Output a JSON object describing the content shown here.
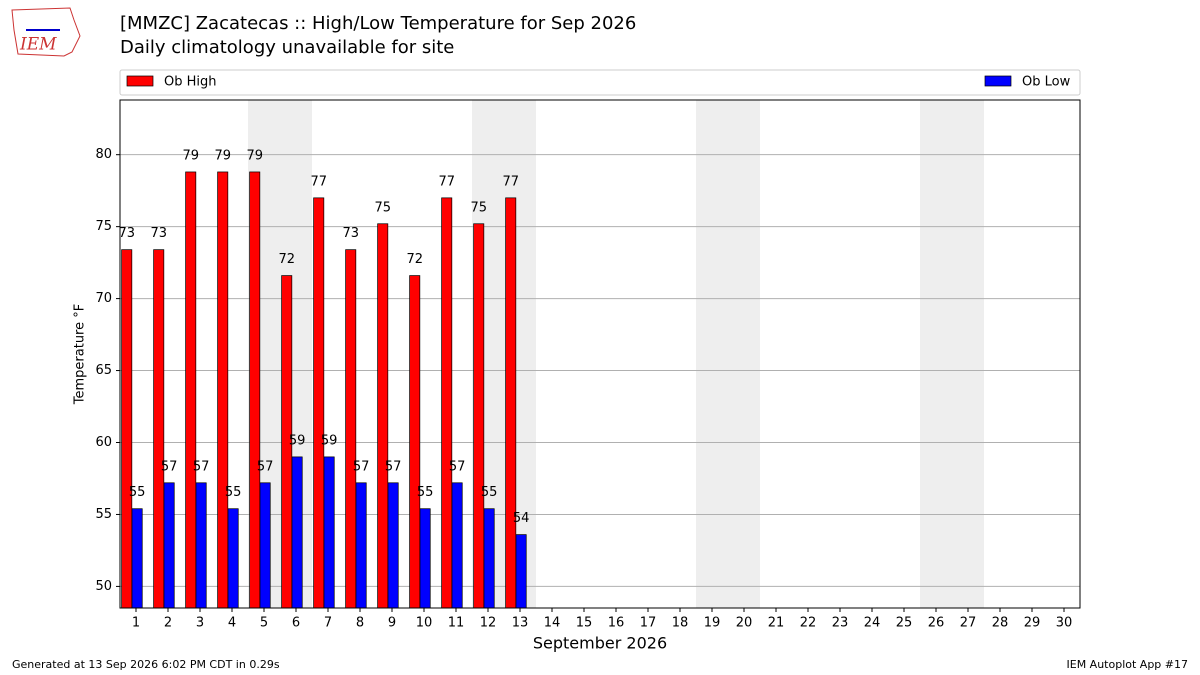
{
  "logo_text": "IEM",
  "footer_left": "Generated at 13 Sep 2026 6:02 PM CDT in 0.29s",
  "footer_right": "IEM Autoplot App #17",
  "chart_data": {
    "type": "bar",
    "title": "[MMZC] Zacatecas :: High/Low Temperature for Sep 2026",
    "subtitle": "Daily climatology unavailable for site",
    "x_label": "September 2026",
    "y_label": "Temperature °F",
    "x": [
      1,
      2,
      3,
      4,
      5,
      6,
      7,
      8,
      9,
      10,
      11,
      12,
      13,
      14,
      15,
      16,
      17,
      18,
      19,
      20,
      21,
      22,
      23,
      24,
      25,
      26,
      27,
      28,
      29,
      30
    ],
    "xlim": [
      0.5,
      30.5
    ],
    "xticks": [
      1,
      2,
      3,
      4,
      5,
      6,
      7,
      8,
      9,
      10,
      11,
      12,
      13,
      14,
      15,
      16,
      17,
      18,
      19,
      20,
      21,
      22,
      23,
      24,
      25,
      26,
      27,
      28,
      29,
      30
    ],
    "ylim": [
      48.5,
      83.8
    ],
    "yticks": [
      50,
      55,
      60,
      65,
      70,
      75,
      80
    ],
    "grid": true,
    "weekend_days": [
      5,
      6,
      12,
      13,
      19,
      20,
      26,
      27
    ],
    "weekend_color": "#eeeeee",
    "legend_position": "top",
    "series": [
      {
        "name": "Ob High",
        "color": "#ff0000",
        "values": [
          73.4,
          73.4,
          78.8,
          78.8,
          78.8,
          71.6,
          77.0,
          73.4,
          75.2,
          71.6,
          77.0,
          75.2,
          77.0,
          null,
          null,
          null,
          null,
          null,
          null,
          null,
          null,
          null,
          null,
          null,
          null,
          null,
          null,
          null,
          null,
          null
        ],
        "value_labels": [
          "73",
          "73",
          "79",
          "79",
          "79",
          "72",
          "77",
          "73",
          "75",
          "72",
          "77",
          "75",
          "77",
          null,
          null,
          null,
          null,
          null,
          null,
          null,
          null,
          null,
          null,
          null,
          null,
          null,
          null,
          null,
          null,
          null
        ]
      },
      {
        "name": "Ob Low",
        "color": "#0000ff",
        "values": [
          55.4,
          57.2,
          57.2,
          55.4,
          57.2,
          59.0,
          59.0,
          57.2,
          57.2,
          55.4,
          57.2,
          55.4,
          53.6,
          null,
          null,
          null,
          null,
          null,
          null,
          null,
          null,
          null,
          null,
          null,
          null,
          null,
          null,
          null,
          null,
          null
        ],
        "value_labels": [
          "55",
          "57",
          "57",
          "55",
          "57",
          "59",
          "59",
          "57",
          "57",
          "55",
          "57",
          "55",
          "54",
          null,
          null,
          null,
          null,
          null,
          null,
          null,
          null,
          null,
          null,
          null,
          null,
          null,
          null,
          null,
          null,
          null
        ]
      }
    ]
  }
}
